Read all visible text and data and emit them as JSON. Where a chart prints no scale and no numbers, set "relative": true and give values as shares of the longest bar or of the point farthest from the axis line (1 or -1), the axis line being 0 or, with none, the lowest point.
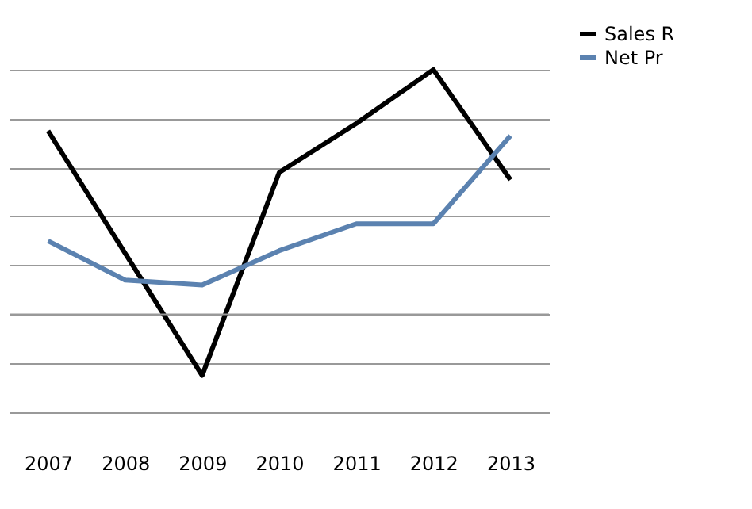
{
  "chart_data": {
    "type": "line",
    "relative": true,
    "categories": [
      "2007",
      "2008",
      "2009",
      "2010",
      "2011",
      "2012",
      "2013"
    ],
    "series": [
      {
        "name": "Sales R",
        "color": "#000000",
        "values": [
          0.75,
          0.25,
          -0.25,
          0.58,
          0.78,
          1,
          0.55
        ]
      },
      {
        "name": "Net Pr",
        "color": "#5b82b0",
        "values": [
          0.3,
          0.14,
          0.12,
          0.26,
          0.37,
          0.37,
          0.73
        ]
      }
    ],
    "grid": "y",
    "legend": "right",
    "marker": "none",
    "line_style": "solid"
  }
}
